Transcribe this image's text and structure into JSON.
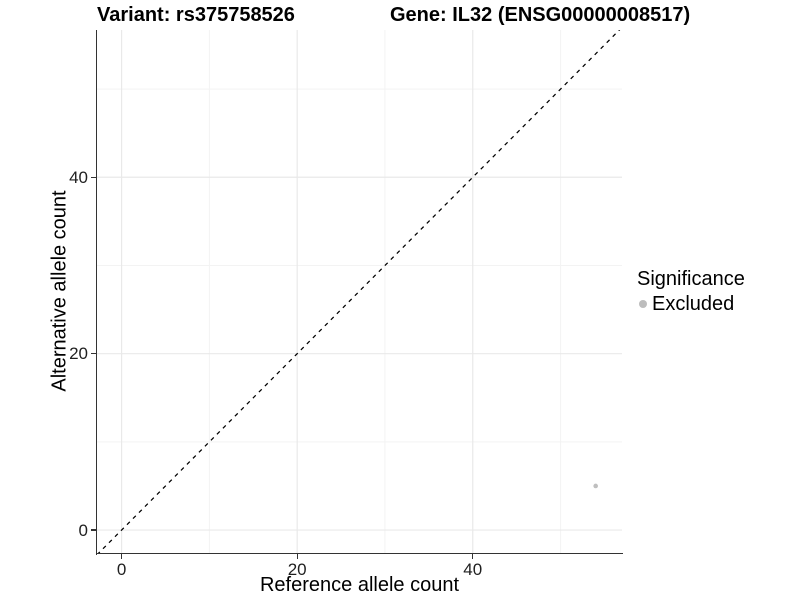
{
  "title": {
    "variant": "Variant: rs375758526",
    "gene": "Gene: IL32 (ENSG00000008517)"
  },
  "chart_data": {
    "type": "scatter",
    "title": "Variant: rs375758526    Gene: IL32 (ENSG00000008517)",
    "xlabel": "Reference allele count",
    "ylabel": "Alternative allele count",
    "xlim": [
      -2.8,
      57.0
    ],
    "ylim": [
      -2.6,
      56.7
    ],
    "x_major_ticks": [
      0,
      20,
      40
    ],
    "y_major_ticks": [
      0,
      20,
      40
    ],
    "x_minor_ticks": [
      10,
      30,
      50
    ],
    "y_minor_ticks": [
      10,
      30,
      50
    ],
    "grid": true,
    "legend_position": "right",
    "reference_line": {
      "type": "identity",
      "slope": 1,
      "intercept": 0,
      "style": "dashed",
      "color": "#000000"
    },
    "series": [
      {
        "name": "Excluded",
        "color": "#bfbfbf",
        "points": [
          {
            "x": 54,
            "y": 5
          }
        ]
      }
    ],
    "legend": {
      "title": "Significance",
      "items": [
        {
          "label": "Excluded",
          "color": "#bdbdbd"
        }
      ]
    },
    "colors": {
      "axis_line": "#333333",
      "major_grid": "#e9e9e9",
      "minor_grid": "#f3f3f3",
      "point": "#bfbfbf"
    }
  }
}
